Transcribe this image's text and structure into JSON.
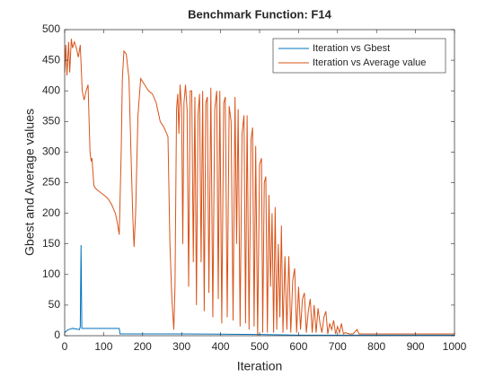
{
  "chart_data": {
    "type": "line",
    "title": "Benchmark Function: F14",
    "x_label": "Iteration",
    "y_label": "Gbest and Average values",
    "xlim": [
      0,
      1000
    ],
    "ylim": [
      0,
      500
    ],
    "xticks": [
      0,
      100,
      200,
      300,
      400,
      500,
      600,
      700,
      800,
      900,
      1000
    ],
    "yticks": [
      0,
      50,
      100,
      150,
      200,
      250,
      300,
      350,
      400,
      450,
      500
    ],
    "legend": "northeast",
    "series": [
      {
        "name": "Iteration vs Gbest",
        "color": "#0072bd",
        "x": [
          0,
          5,
          10,
          20,
          30,
          38,
          40,
          42,
          44,
          46,
          50,
          80,
          100,
          140,
          142,
          200,
          300,
          400,
          500,
          600,
          700,
          800,
          900,
          1000
        ],
        "values": [
          5,
          8,
          10,
          12,
          11,
          10,
          15,
          148,
          12,
          12,
          12,
          12,
          12,
          12,
          3,
          3,
          3,
          2.5,
          2,
          1,
          1,
          1,
          1,
          1
        ]
      },
      {
        "name": "Iteration vs Average value",
        "color": "#d95319",
        "x": [
          0,
          3,
          6,
          10,
          13,
          17,
          20,
          25,
          30,
          35,
          40,
          45,
          50,
          55,
          60,
          65,
          68,
          70,
          75,
          80,
          90,
          100,
          110,
          120,
          130,
          135,
          140,
          145,
          148,
          152,
          158,
          165,
          170,
          175,
          178,
          182,
          188,
          195,
          205,
          215,
          225,
          235,
          245,
          255,
          265,
          270,
          275,
          280,
          283,
          287,
          290,
          293,
          296,
          300,
          303,
          306,
          310,
          314,
          318,
          322,
          326,
          330,
          334,
          338,
          342,
          346,
          350,
          354,
          358,
          362,
          366,
          370,
          375,
          380,
          385,
          390,
          394,
          398,
          403,
          408,
          412,
          417,
          422,
          427,
          432,
          437,
          441,
          445,
          450,
          455,
          460,
          464,
          468,
          473,
          478,
          482,
          486,
          490,
          495,
          500,
          505,
          508,
          512,
          516,
          520,
          524,
          528,
          532,
          536,
          540,
          544,
          548,
          552,
          556,
          560,
          565,
          570,
          575,
          580,
          585,
          590,
          595,
          600,
          605,
          610,
          615,
          620,
          625,
          630,
          635,
          640,
          645,
          650,
          655,
          660,
          665,
          670,
          675,
          680,
          685,
          690,
          695,
          700,
          705,
          710,
          715,
          720,
          730,
          740,
          750,
          755,
          800,
          1000
        ],
        "values": [
          430,
          475,
          425,
          480,
          430,
          485,
          470,
          480,
          470,
          455,
          475,
          400,
          385,
          400,
          410,
          300,
          285,
          290,
          245,
          240,
          235,
          230,
          225,
          215,
          200,
          185,
          165,
          300,
          420,
          465,
          460,
          420,
          300,
          190,
          145,
          200,
          360,
          420,
          410,
          400,
          395,
          380,
          350,
          340,
          325,
          150,
          60,
          10,
          80,
          370,
          395,
          330,
          410,
          370,
          150,
          380,
          410,
          370,
          80,
          400,
          400,
          120,
          390,
          50,
          360,
          395,
          120,
          400,
          40,
          380,
          390,
          70,
          405,
          30,
          370,
          400,
          60,
          400,
          20,
          380,
          390,
          30,
          375,
          350,
          25,
          390,
          150,
          370,
          15,
          330,
          360,
          20,
          360,
          10,
          320,
          340,
          15,
          310,
          0,
          280,
          290,
          5,
          250,
          260,
          5,
          230,
          80,
          200,
          5,
          210,
          10,
          150,
          30,
          180,
          5,
          130,
          10,
          130,
          5,
          90,
          110,
          5,
          80,
          10,
          60,
          70,
          5,
          40,
          60,
          5,
          50,
          5,
          45,
          20,
          5,
          30,
          40,
          3,
          20,
          10,
          25,
          3,
          15,
          5,
          20,
          3,
          5,
          3,
          3,
          10,
          3,
          3,
          3
        ]
      }
    ]
  }
}
